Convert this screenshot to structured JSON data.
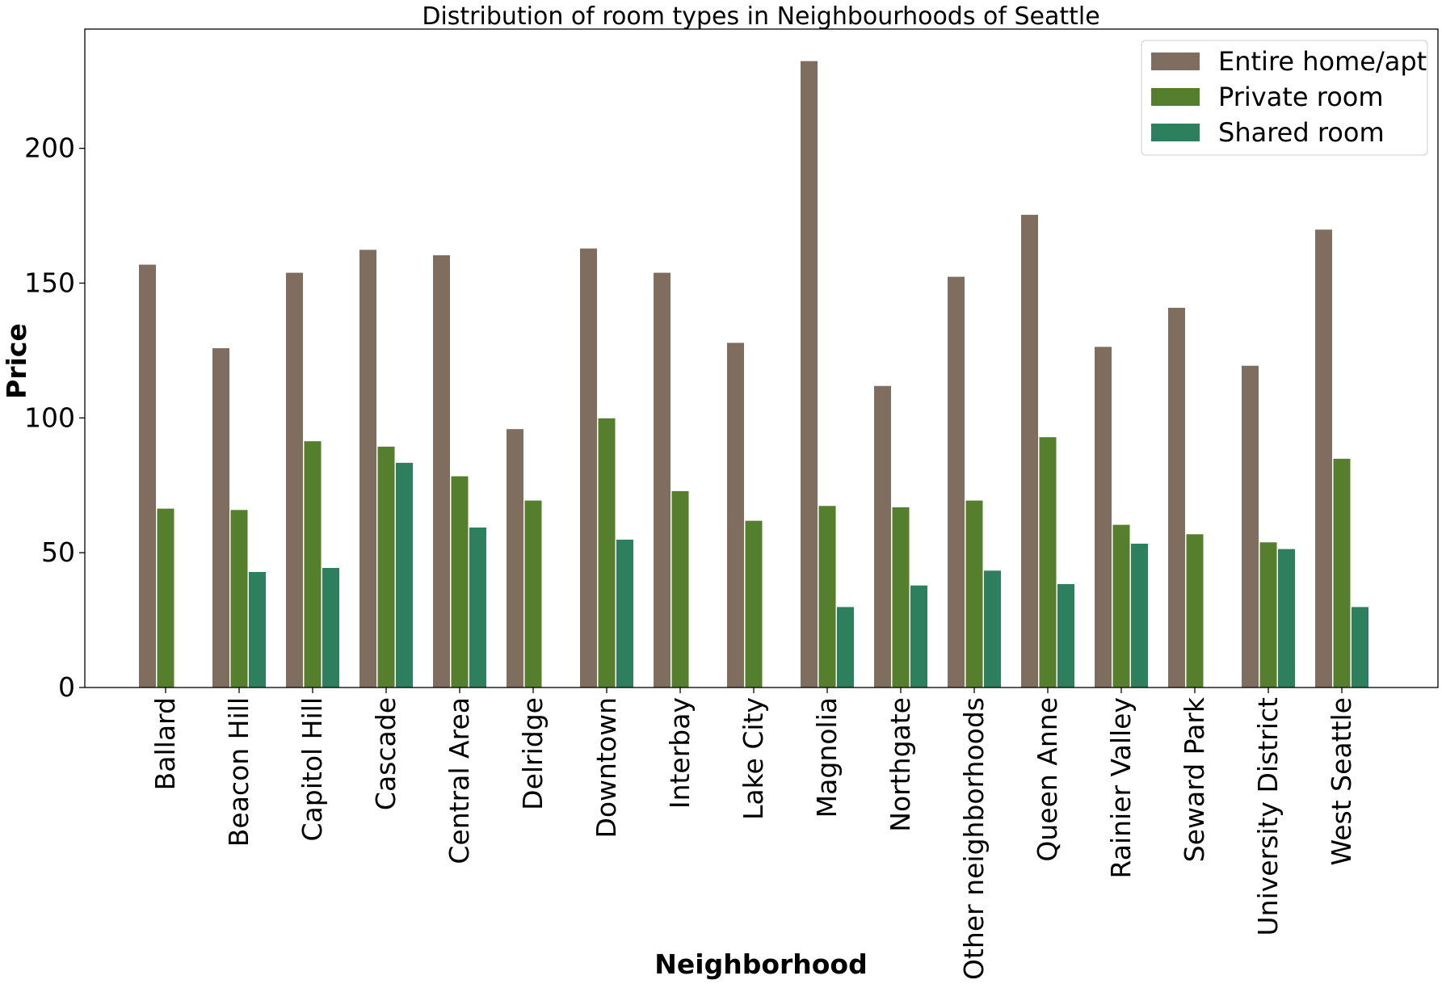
{
  "chart_data": {
    "type": "bar",
    "title": "Distribution of room types in Neighbourhoods of Seattle",
    "xlabel": "Neighborhood",
    "ylabel": "Price",
    "ylim": [
      0,
      245
    ],
    "yticks": [
      0,
      50,
      100,
      150,
      200
    ],
    "grid": false,
    "legend_position": "top-right",
    "categories": [
      "Ballard",
      "Beacon Hill",
      "Capitol Hill",
      "Cascade",
      "Central Area",
      "Delridge",
      "Downtown",
      "Interbay",
      "Lake City",
      "Magnolia",
      "Northgate",
      "Other neighborhoods",
      "Queen Anne",
      "Rainier Valley",
      "Seward Park",
      "University District",
      "West Seattle"
    ],
    "series": [
      {
        "name": "Entire home/apt",
        "color": "#7f6d5f",
        "values": [
          157,
          126,
          154,
          162.5,
          160.5,
          96,
          163,
          154,
          128,
          232.5,
          112,
          152.5,
          175.5,
          126.5,
          141,
          119.5,
          170
        ]
      },
      {
        "name": "Private room",
        "color": "#557f2d",
        "values": [
          66.5,
          66,
          91.5,
          89.5,
          78.5,
          69.5,
          100,
          73,
          62,
          67.5,
          67,
          69.5,
          93,
          60.5,
          57,
          54,
          85
        ]
      },
      {
        "name": "Shared room",
        "color": "#2d7f5e",
        "values": [
          null,
          43,
          44.5,
          83.5,
          59.5,
          null,
          55,
          null,
          null,
          30,
          38,
          43.5,
          38.5,
          53.5,
          null,
          51.5,
          30
        ]
      }
    ]
  }
}
